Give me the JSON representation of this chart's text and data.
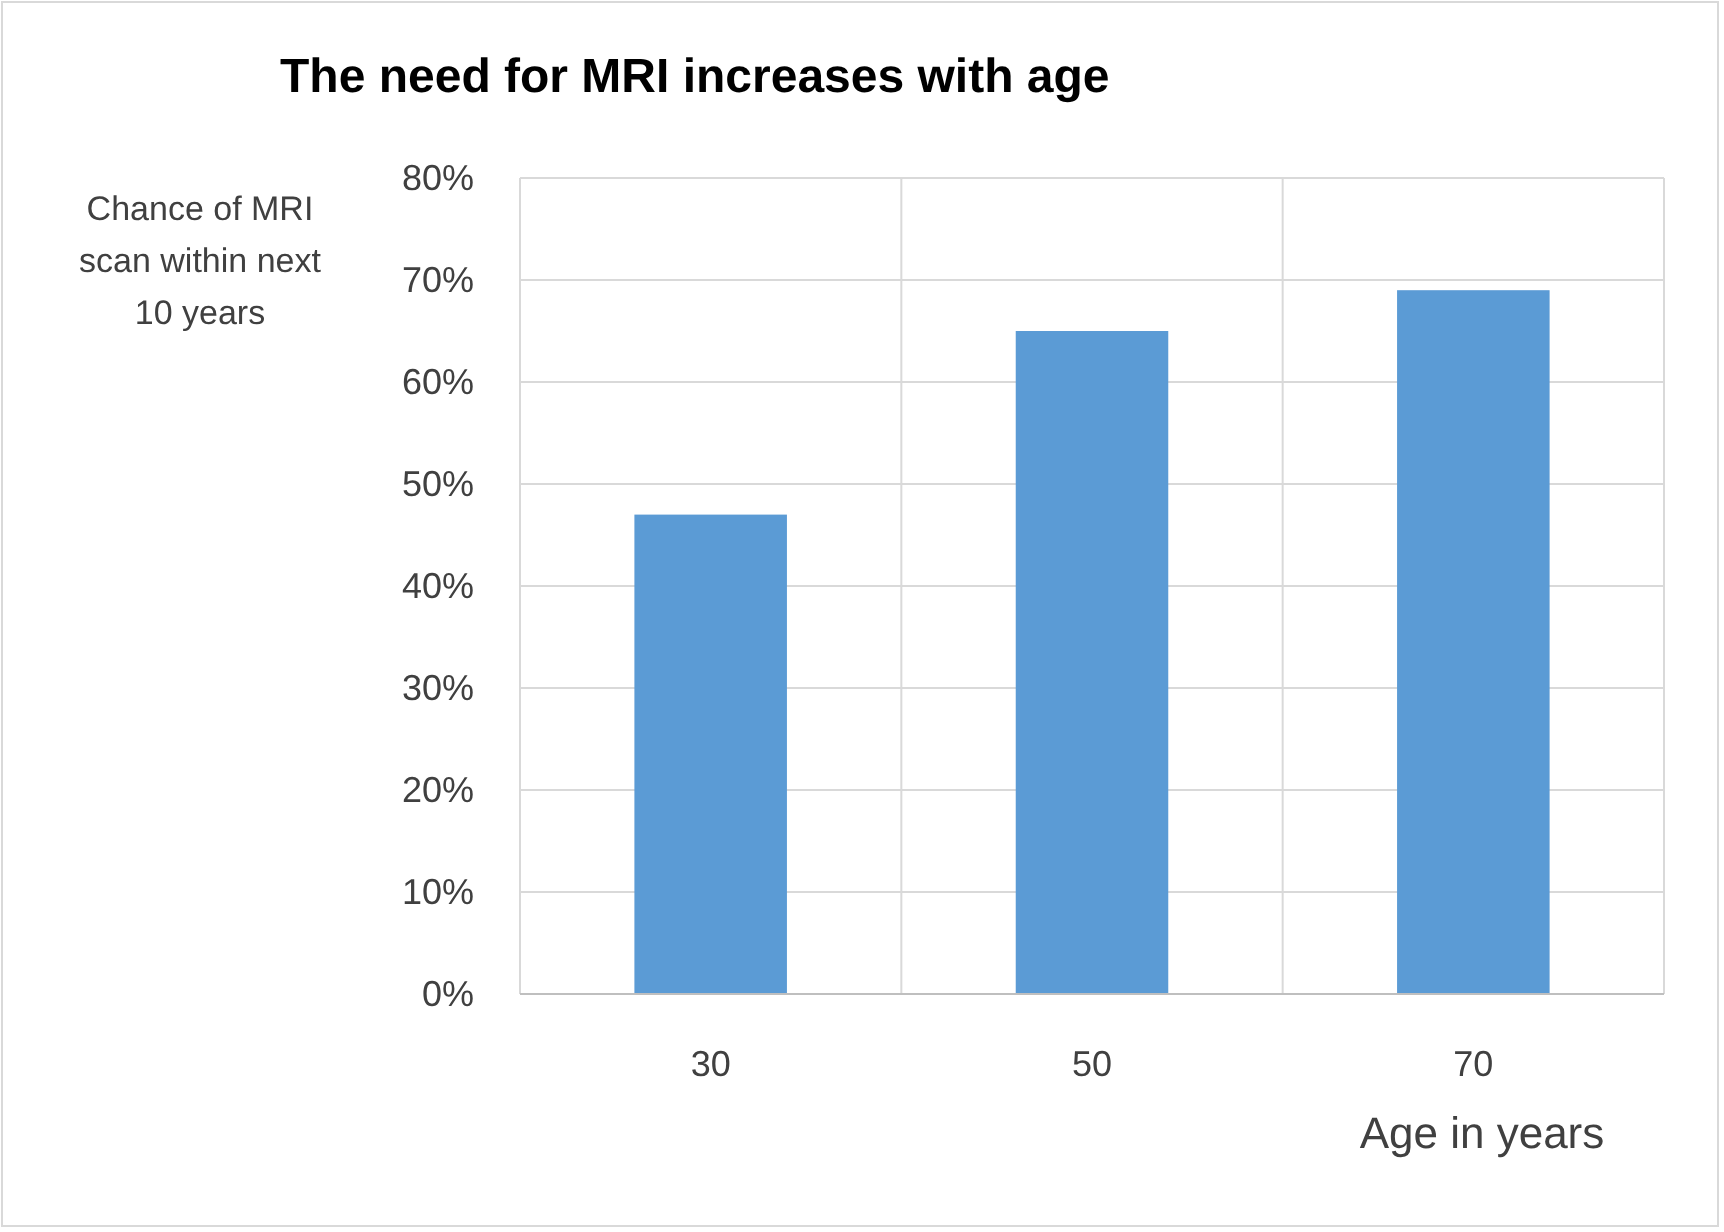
{
  "chart_data": {
    "type": "bar",
    "title": "The need for MRI increases with age",
    "ylabel": "Chance of MRI scan within next 10 years",
    "xlabel": "Age in years",
    "categories": [
      "30",
      "50",
      "70"
    ],
    "values": [
      47,
      65,
      69
    ],
    "color": "#5b9bd5",
    "ylim": [
      0,
      80
    ],
    "yticks": [
      {
        "value": 0,
        "label": "0%"
      },
      {
        "value": 10,
        "label": "10%"
      },
      {
        "value": 20,
        "label": "20%"
      },
      {
        "value": 30,
        "label": "30%"
      },
      {
        "value": 40,
        "label": "40%"
      },
      {
        "value": 50,
        "label": "50%"
      },
      {
        "value": 60,
        "label": "60%"
      },
      {
        "value": 70,
        "label": "70%"
      },
      {
        "value": 80,
        "label": "80%"
      }
    ],
    "grid": true
  }
}
